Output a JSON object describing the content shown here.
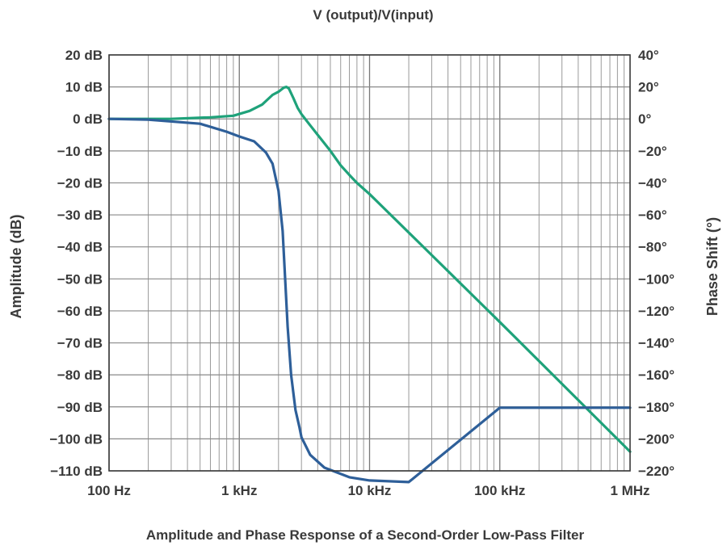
{
  "chart_data": {
    "type": "line",
    "title": "V (output)/V(input)",
    "caption": "Amplitude and Phase Response of a Second-Order Low-Pass Filter",
    "ylabel_left": "Amplitude (dB)",
    "ylabel_right": "Phase Shift (°)",
    "x_scale": "log",
    "xlim_hz": [
      100,
      1000000
    ],
    "x_ticks": [
      {
        "value": 100,
        "label": "100 Hz"
      },
      {
        "value": 1000,
        "label": "1 kHz"
      },
      {
        "value": 10000,
        "label": "10 kHz"
      },
      {
        "value": 100000,
        "label": "100 kHz"
      },
      {
        "value": 1000000,
        "label": "1 MHz"
      }
    ],
    "ylim_left": [
      -110,
      20
    ],
    "ylim_right": [
      -220,
      40
    ],
    "y_ticks_left": [
      "20 dB",
      "10 dB",
      "0 dB",
      "−10 dB",
      "−20 dB",
      "−30 dB",
      "−40 dB",
      "−50 dB",
      "−60 dB",
      "−70 dB",
      "−80 dB",
      "−90 dB",
      "−100 dB",
      "−110 dB"
    ],
    "y_ticks_right": [
      "40°",
      "20°",
      "0°",
      "−20°",
      "−40°",
      "−60°",
      "−80°",
      "−100°",
      "−120°",
      "−140°",
      "−160°",
      "−180°",
      "−200°",
      "−220°"
    ],
    "grid": true,
    "series": [
      {
        "axis": "left",
        "color": "#1fa27a",
        "x": [
          100,
          300,
          600,
          900,
          1200,
          1500,
          1800,
          2000,
          2200,
          2300,
          2400,
          2600,
          2800,
          3000,
          3500,
          4000,
          5000,
          6000,
          7000,
          8000,
          10000,
          100000,
          1000000
        ],
        "y": [
          0,
          0,
          0.5,
          1.0,
          2.5,
          4.5,
          7.5,
          8.5,
          9.8,
          10.0,
          9.5,
          6.5,
          3.5,
          1.5,
          -2.0,
          -5.0,
          -10.0,
          -14.5,
          -17.5,
          -20.0,
          -23.5,
          -63.5,
          -104.0
        ]
      },
      {
        "axis": "right",
        "color": "#2e5f99",
        "x": [
          100,
          200,
          500,
          800,
          1000,
          1300,
          1600,
          1800,
          2000,
          2150,
          2250,
          2350,
          2500,
          2700,
          2900,
          3000,
          3500,
          4500,
          7000,
          10000,
          20000,
          100000,
          1000000
        ],
        "y": [
          0,
          -0.5,
          -3,
          -8,
          -11,
          -14,
          -21,
          -28,
          -45,
          -70,
          -100,
          -130,
          -160,
          -182,
          -193,
          -199,
          -210,
          -218,
          -224,
          -226,
          -227,
          -180.5,
          -180.5
        ]
      }
    ]
  }
}
